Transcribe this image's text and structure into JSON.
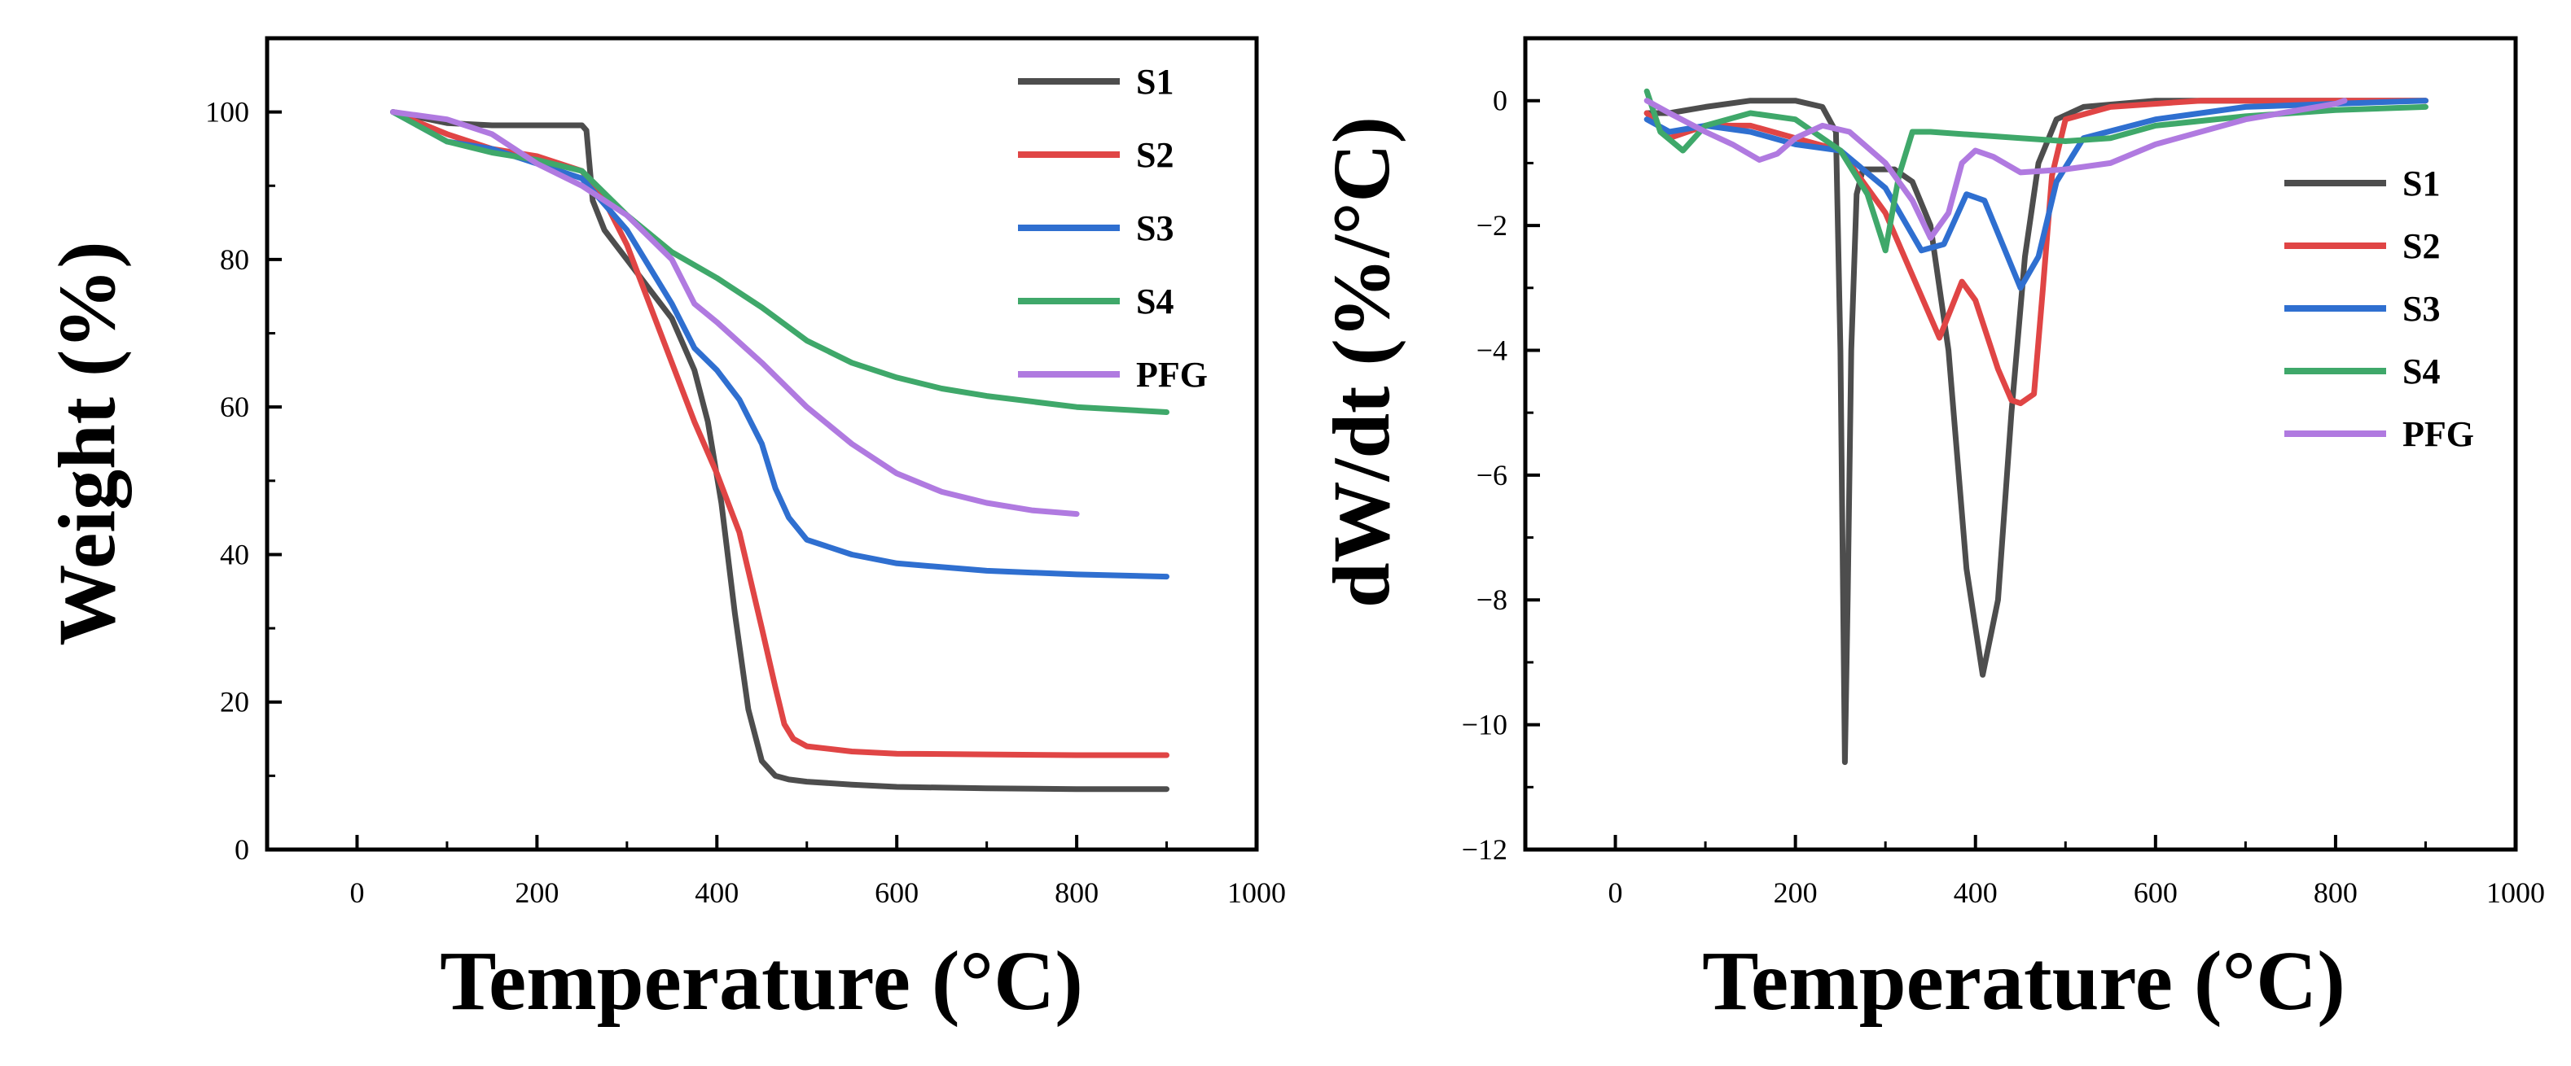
{
  "chart_data": [
    {
      "type": "line",
      "title": "",
      "xlabel": "Temperature (°C)",
      "ylabel": "Weight (%)",
      "xlim": [
        -100,
        1000
      ],
      "ylim": [
        0,
        110
      ],
      "xticks": [
        0,
        200,
        400,
        600,
        800,
        1000
      ],
      "yticks": [
        0,
        20,
        40,
        60,
        80,
        100
      ],
      "xtick_labels": [
        "0",
        "200",
        "400",
        "600",
        "800",
        "1000"
      ],
      "ytick_labels": [
        "0",
        "20",
        "40",
        "60",
        "80",
        "100"
      ],
      "legend_position": "top-right",
      "grid": false,
      "series": [
        {
          "name": "S1",
          "color": "#4d4d4d",
          "x": [
            40,
            100,
            150,
            200,
            250,
            255,
            262,
            275,
            300,
            325,
            350,
            375,
            390,
            405,
            420,
            435,
            450,
            465,
            480,
            500,
            550,
            600,
            700,
            800,
            900
          ],
          "y": [
            100,
            98.5,
            98.2,
            98.2,
            98.2,
            97.5,
            88,
            84,
            80,
            76,
            72,
            65,
            58,
            47,
            32,
            19,
            12,
            10,
            9.5,
            9.2,
            8.8,
            8.5,
            8.3,
            8.2,
            8.2
          ]
        },
        {
          "name": "S2",
          "color": "#e04545",
          "x": [
            40,
            100,
            150,
            200,
            250,
            275,
            300,
            325,
            350,
            375,
            400,
            425,
            450,
            465,
            475,
            485,
            500,
            550,
            600,
            700,
            800,
            900
          ],
          "y": [
            100,
            97,
            95,
            94,
            92,
            88,
            82,
            74,
            66,
            58,
            51,
            43,
            30,
            22,
            17,
            15,
            14,
            13.3,
            13,
            12.9,
            12.8,
            12.8
          ]
        },
        {
          "name": "S3",
          "color": "#2f6fd0",
          "x": [
            40,
            100,
            150,
            200,
            250,
            300,
            350,
            375,
            400,
            425,
            450,
            465,
            480,
            500,
            550,
            600,
            700,
            800,
            900
          ],
          "y": [
            100,
            96,
            95,
            93,
            91,
            84,
            74,
            68,
            65,
            61,
            55,
            49,
            45,
            42,
            40,
            38.8,
            37.8,
            37.3,
            37
          ]
        },
        {
          "name": "S4",
          "color": "#3fa86a",
          "x": [
            40,
            100,
            150,
            200,
            250,
            300,
            350,
            400,
            450,
            500,
            550,
            600,
            650,
            700,
            800,
            900
          ],
          "y": [
            100,
            96,
            94.5,
            93.5,
            92,
            86,
            81,
            77.5,
            73.5,
            69,
            66,
            64,
            62.5,
            61.5,
            60,
            59.3
          ]
        },
        {
          "name": "PFG",
          "color": "#b07ae0",
          "x": [
            40,
            100,
            150,
            200,
            250,
            300,
            350,
            375,
            400,
            450,
            500,
            550,
            600,
            650,
            700,
            750,
            800
          ],
          "y": [
            100,
            99,
            97,
            93,
            90,
            86,
            80,
            74,
            71.5,
            66,
            60,
            55,
            51,
            48.5,
            47,
            46,
            45.5
          ]
        }
      ]
    },
    {
      "type": "line",
      "title": "",
      "xlabel": "Temperature (°C)",
      "ylabel": "dW/dt (%/°C)",
      "xlim": [
        -100,
        1000
      ],
      "ylim": [
        -12,
        1
      ],
      "xticks": [
        0,
        200,
        400,
        600,
        800,
        1000
      ],
      "yticks": [
        -12,
        -10,
        -8,
        -6,
        -4,
        -2,
        0
      ],
      "xtick_labels": [
        "0",
        "200",
        "400",
        "600",
        "800",
        "1000"
      ],
      "ytick_labels": [
        "−12",
        "−10",
        "−8",
        "−6",
        "−4",
        "−2",
        "0"
      ],
      "legend_position": "right",
      "grid": false,
      "series": [
        {
          "name": "S1",
          "color": "#4d4d4d",
          "x": [
            35,
            60,
            100,
            150,
            200,
            230,
            245,
            250,
            255,
            258,
            262,
            268,
            275,
            290,
            310,
            330,
            350,
            370,
            390,
            408,
            425,
            440,
            455,
            470,
            490,
            520,
            600,
            700,
            800,
            900
          ],
          "y": [
            -0.2,
            -0.2,
            -0.1,
            0,
            0,
            -0.1,
            -0.5,
            -4,
            -10.6,
            -8,
            -4,
            -1.5,
            -1.1,
            -1.1,
            -1.1,
            -1.3,
            -2,
            -4,
            -7.5,
            -9.2,
            -8,
            -5,
            -2.5,
            -1,
            -0.3,
            -0.1,
            0,
            0,
            0,
            0
          ]
        },
        {
          "name": "S2",
          "color": "#e04545",
          "x": [
            35,
            60,
            100,
            150,
            200,
            250,
            300,
            330,
            360,
            385,
            400,
            425,
            440,
            450,
            465,
            475,
            485,
            500,
            550,
            650,
            800,
            900
          ],
          "y": [
            -0.2,
            -0.6,
            -0.4,
            -0.4,
            -0.6,
            -0.8,
            -1.8,
            -2.8,
            -3.8,
            -2.9,
            -3.2,
            -4.3,
            -4.8,
            -4.85,
            -4.7,
            -3,
            -1.2,
            -0.3,
            -0.1,
            0,
            0,
            0
          ]
        },
        {
          "name": "S3",
          "color": "#2f6fd0",
          "x": [
            35,
            60,
            100,
            150,
            200,
            250,
            300,
            340,
            365,
            390,
            410,
            430,
            450,
            470,
            490,
            520,
            600,
            700,
            800,
            900
          ],
          "y": [
            -0.3,
            -0.5,
            -0.4,
            -0.5,
            -0.7,
            -0.8,
            -1.4,
            -2.4,
            -2.3,
            -1.5,
            -1.6,
            -2.3,
            -3.0,
            -2.5,
            -1.3,
            -0.6,
            -0.3,
            -0.1,
            -0.05,
            0
          ]
        },
        {
          "name": "S4",
          "color": "#3fa86a",
          "x": [
            35,
            50,
            75,
            100,
            150,
            200,
            250,
            280,
            300,
            315,
            330,
            350,
            400,
            450,
            500,
            550,
            600,
            700,
            800,
            900
          ],
          "y": [
            0.15,
            -0.5,
            -0.8,
            -0.4,
            -0.2,
            -0.3,
            -0.8,
            -1.5,
            -2.4,
            -1.2,
            -0.5,
            -0.5,
            -0.55,
            -0.6,
            -0.65,
            -0.6,
            -0.4,
            -0.25,
            -0.15,
            -0.1
          ]
        },
        {
          "name": "PFG",
          "color": "#b07ae0",
          "x": [
            35,
            60,
            100,
            130,
            160,
            180,
            200,
            230,
            260,
            300,
            330,
            350,
            370,
            385,
            400,
            420,
            450,
            500,
            550,
            600,
            700,
            800,
            810
          ],
          "y": [
            0,
            -0.2,
            -0.5,
            -0.7,
            -0.95,
            -0.85,
            -0.6,
            -0.4,
            -0.5,
            -1.0,
            -1.6,
            -2.2,
            -1.8,
            -1.0,
            -0.8,
            -0.9,
            -1.15,
            -1.1,
            -1.0,
            -0.7,
            -0.3,
            -0.05,
            0
          ]
        }
      ]
    }
  ]
}
